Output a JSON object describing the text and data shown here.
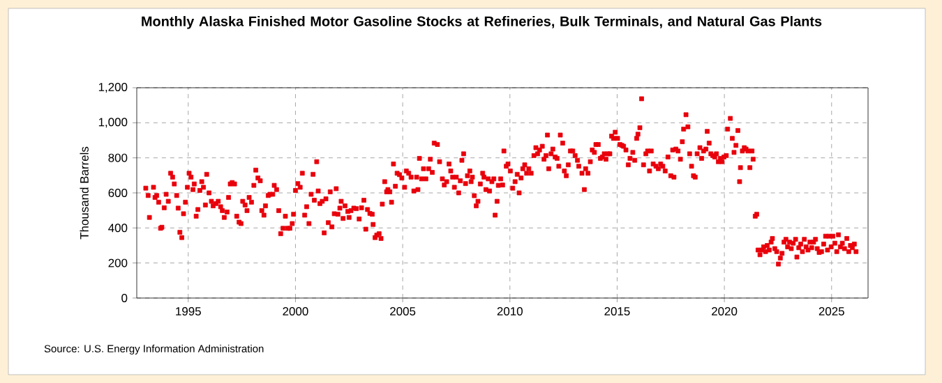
{
  "chart_data": {
    "type": "scatter",
    "title": "Monthly Alaska Finished Motor Gasoline Stocks at Refineries, Bulk Terminals, and Natural Gas Plants",
    "ylabel": "Thousand Barrels",
    "annotations": [
      "Source: U.S. Energy Information Administration"
    ],
    "color": "#e8000b",
    "marker": "square",
    "grid": true,
    "xlim": [
      1992.6,
      2026.7
    ],
    "xticks": [
      1995,
      2000,
      2005,
      2010,
      2015,
      2020,
      2025
    ],
    "ylim": [
      0,
      1200
    ],
    "yticks": [
      0,
      200,
      400,
      600,
      800,
      {
        "value": 1000,
        "label": "1,000"
      },
      {
        "value": 1200,
        "label": "1,200"
      }
    ],
    "x": [
      1993.02,
      1993.13,
      1993.19,
      1993.38,
      1993.45,
      1993.53,
      1993.62,
      1993.71,
      1993.77,
      1993.88,
      1993.97,
      1994.07,
      1994.18,
      1994.27,
      1994.35,
      1994.46,
      1994.53,
      1994.61,
      1994.7,
      1994.78,
      1994.87,
      1994.96,
      1995.04,
      1995.13,
      1995.22,
      1995.28,
      1995.37,
      1995.45,
      1995.54,
      1995.63,
      1995.71,
      1995.8,
      1995.86,
      1995.97,
      1996.08,
      1996.16,
      1996.29,
      1996.4,
      1996.51,
      1996.59,
      1996.68,
      1996.81,
      1996.88,
      1996.96,
      1997.05,
      1997.16,
      1997.26,
      1997.37,
      1997.46,
      1997.54,
      1997.65,
      1997.74,
      1997.84,
      1997.95,
      1998.06,
      1998.15,
      1998.25,
      1998.36,
      1998.43,
      1998.53,
      1998.6,
      1998.73,
      1998.81,
      1998.94,
      1999.01,
      1999.12,
      1999.22,
      1999.31,
      1999.42,
      1999.53,
      1999.63,
      1999.74,
      1999.85,
      1999.91,
      2000.0,
      2000.11,
      2000.22,
      2000.32,
      2000.43,
      2000.52,
      2000.63,
      2000.73,
      2000.82,
      2000.88,
      2000.99,
      2001.06,
      2001.14,
      2001.25,
      2001.34,
      2001.42,
      2001.53,
      2001.62,
      2001.7,
      2001.81,
      2001.9,
      2001.98,
      2002.07,
      2002.13,
      2002.22,
      2002.31,
      2002.44,
      2002.5,
      2002.59,
      2002.72,
      2002.84,
      2002.97,
      2003.08,
      2003.19,
      2003.28,
      2003.36,
      2003.47,
      2003.58,
      2003.62,
      2003.71,
      2003.79,
      2003.9,
      2003.99,
      2004.05,
      2004.16,
      2004.25,
      2004.31,
      2004.4,
      2004.48,
      2004.57,
      2004.66,
      2004.74,
      2004.85,
      2004.96,
      2005.09,
      2005.17,
      2005.28,
      2005.39,
      2005.52,
      2005.65,
      2005.71,
      2005.78,
      2005.88,
      2005.97,
      2006.08,
      2006.21,
      2006.29,
      2006.38,
      2006.47,
      2006.62,
      2006.72,
      2006.85,
      2006.94,
      2007.05,
      2007.16,
      2007.24,
      2007.33,
      2007.41,
      2007.5,
      2007.61,
      2007.69,
      2007.76,
      2007.84,
      2007.93,
      2008.02,
      2008.13,
      2008.19,
      2008.25,
      2008.34,
      2008.43,
      2008.51,
      2008.62,
      2008.73,
      2008.79,
      2008.88,
      2008.99,
      2009.05,
      2009.16,
      2009.25,
      2009.31,
      2009.4,
      2009.46,
      2009.57,
      2009.66,
      2009.72,
      2009.83,
      2009.91,
      2010.02,
      2010.13,
      2010.24,
      2010.34,
      2010.43,
      2010.52,
      2010.6,
      2010.69,
      2010.78,
      2010.88,
      2010.99,
      2011.12,
      2011.21,
      2011.29,
      2011.38,
      2011.51,
      2011.59,
      2011.68,
      2011.75,
      2011.81,
      2011.92,
      2012.0,
      2012.11,
      2012.2,
      2012.28,
      2012.35,
      2012.46,
      2012.54,
      2012.63,
      2012.72,
      2012.82,
      2012.93,
      2013.04,
      2013.15,
      2013.21,
      2013.36,
      2013.47,
      2013.53,
      2013.64,
      2013.75,
      2013.84,
      2013.94,
      2014.01,
      2014.12,
      2014.22,
      2014.31,
      2014.4,
      2014.48,
      2014.57,
      2014.66,
      2014.74,
      2014.83,
      2014.91,
      2015.02,
      2015.13,
      2015.22,
      2015.3,
      2015.41,
      2015.52,
      2015.6,
      2015.73,
      2015.82,
      2015.91,
      2015.97,
      2016.06,
      2016.14,
      2016.23,
      2016.34,
      2016.42,
      2016.51,
      2016.59,
      2016.68,
      2016.81,
      2016.92,
      2017.03,
      2017.13,
      2017.24,
      2017.37,
      2017.5,
      2017.59,
      2017.65,
      2017.74,
      2017.84,
      2017.95,
      2018.04,
      2018.1,
      2018.21,
      2018.3,
      2018.38,
      2018.47,
      2018.56,
      2018.64,
      2018.73,
      2018.86,
      2018.94,
      2019.03,
      2019.14,
      2019.2,
      2019.29,
      2019.37,
      2019.46,
      2019.55,
      2019.63,
      2019.72,
      2019.81,
      2019.89,
      2019.98,
      2020.09,
      2020.15,
      2020.28,
      2020.37,
      2020.45,
      2020.54,
      2020.63,
      2020.71,
      2020.75,
      2020.84,
      2020.93,
      2021.01,
      2021.1,
      2021.19,
      2021.29,
      2021.34,
      2021.44,
      2021.51,
      2021.57,
      2021.66,
      2021.75,
      2021.83,
      2021.92,
      2022.0,
      2022.09,
      2022.18,
      2022.24,
      2022.35,
      2022.44,
      2022.52,
      2022.61,
      2022.69,
      2022.78,
      2022.87,
      2022.95,
      2023.04,
      2023.12,
      2023.21,
      2023.32,
      2023.38,
      2023.47,
      2023.56,
      2023.64,
      2023.73,
      2023.81,
      2023.9,
      2023.99,
      2024.07,
      2024.16,
      2024.25,
      2024.33,
      2024.42,
      2024.53,
      2024.63,
      2024.72,
      2024.81,
      2024.89,
      2024.98,
      2025.06,
      2025.15,
      2025.24,
      2025.32,
      2025.41,
      2025.5,
      2025.6,
      2025.71,
      2025.8,
      2025.88,
      2025.97,
      2026.06,
      2026.14
    ],
    "values": [
      627,
      585,
      460,
      632,
      574,
      585,
      547,
      398,
      404,
      515,
      592,
      552,
      712,
      690,
      651,
      585,
      513,
      375,
      345,
      481,
      547,
      632,
      712,
      690,
      619,
      651,
      467,
      505,
      614,
      664,
      632,
      531,
      706,
      600,
      552,
      526,
      539,
      552,
      521,
      499,
      460,
      491,
      574,
      651,
      659,
      651,
      467,
      433,
      425,
      552,
      531,
      499,
      574,
      547,
      643,
      730,
      685,
      669,
      499,
      473,
      526,
      585,
      592,
      592,
      643,
      619,
      499,
      367,
      398,
      467,
      398,
      398,
      425,
      478,
      614,
      653,
      632,
      712,
      473,
      521,
      425,
      592,
      706,
      558,
      778,
      611,
      539,
      552,
      372,
      566,
      430,
      606,
      406,
      481,
      624,
      478,
      513,
      552,
      454,
      526,
      494,
      460,
      499,
      513,
      510,
      451,
      515,
      558,
      393,
      505,
      483,
      478,
      420,
      345,
      359,
      367,
      340,
      536,
      664,
      606,
      619,
      606,
      547,
      765,
      638,
      712,
      704,
      685,
      632,
      725,
      712,
      690,
      611,
      690,
      619,
      797,
      680,
      738,
      680,
      738,
      792,
      717,
      884,
      876,
      778,
      680,
      645,
      664,
      765,
      725,
      690,
      632,
      690,
      600,
      669,
      786,
      823,
      653,
      698,
      725,
      664,
      690,
      584,
      526,
      552,
      651,
      712,
      690,
      619,
      680,
      611,
      664,
      680,
      473,
      552,
      643,
      680,
      645,
      839,
      752,
      765,
      725,
      627,
      664,
      706,
      600,
      685,
      738,
      760,
      712,
      738,
      712,
      813,
      858,
      823,
      845,
      866,
      792,
      813,
      930,
      738,
      823,
      850,
      805,
      797,
      752,
      930,
      884,
      725,
      698,
      760,
      839,
      839,
      813,
      786,
      752,
      712,
      619,
      738,
      712,
      778,
      845,
      831,
      876,
      876,
      797,
      805,
      823,
      792,
      823,
      823,
      924,
      911,
      946,
      911,
      876,
      871,
      866,
      845,
      760,
      797,
      831,
      786,
      911,
      935,
      972,
      1137,
      760,
      823,
      839,
      725,
      839,
      765,
      752,
      738,
      765,
      752,
      725,
      805,
      698,
      845,
      690,
      850,
      839,
      792,
      892,
      964,
      1046,
      977,
      823,
      752,
      698,
      690,
      823,
      858,
      797,
      839,
      850,
      951,
      884,
      823,
      813,
      805,
      823,
      778,
      797,
      778,
      805,
      813,
      964,
      1025,
      911,
      831,
      871,
      956,
      664,
      744,
      839,
      858,
      850,
      839,
      744,
      839,
      792,
      467,
      478,
      274,
      247,
      274,
      292,
      265,
      300,
      274,
      319,
      340,
      282,
      265,
      194,
      228,
      255,
      319,
      335,
      292,
      319,
      282,
      313,
      335,
      234,
      287,
      308,
      265,
      335,
      292,
      274,
      319,
      287,
      319,
      335,
      282,
      260,
      265,
      308,
      353,
      274,
      353,
      292,
      353,
      313,
      265,
      361,
      292,
      313,
      282,
      340,
      265,
      300,
      287,
      308,
      265
    ]
  }
}
